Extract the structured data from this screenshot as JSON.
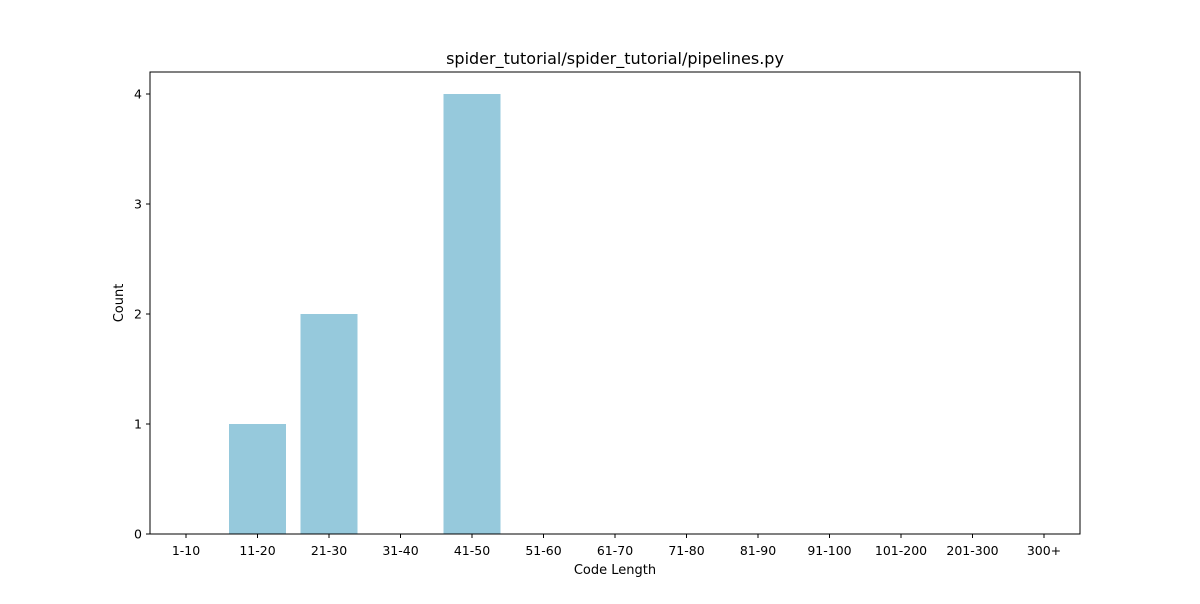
{
  "chart_data": {
    "type": "bar",
    "title": "spider_tutorial/spider_tutorial/pipelines.py",
    "xlabel": "Code Length",
    "ylabel": "Count",
    "categories": [
      "1-10",
      "11-20",
      "21-30",
      "31-40",
      "41-50",
      "51-60",
      "61-70",
      "71-80",
      "81-90",
      "91-100",
      "101-200",
      "201-300",
      "300+"
    ],
    "values": [
      0,
      1,
      2,
      0,
      4,
      0,
      0,
      0,
      0,
      0,
      0,
      0,
      0
    ],
    "yticks": [
      "0",
      "1",
      "2",
      "3",
      "4"
    ],
    "ylim": [
      0,
      4.2
    ],
    "grid": false,
    "bar_color": "#96c9dc"
  }
}
